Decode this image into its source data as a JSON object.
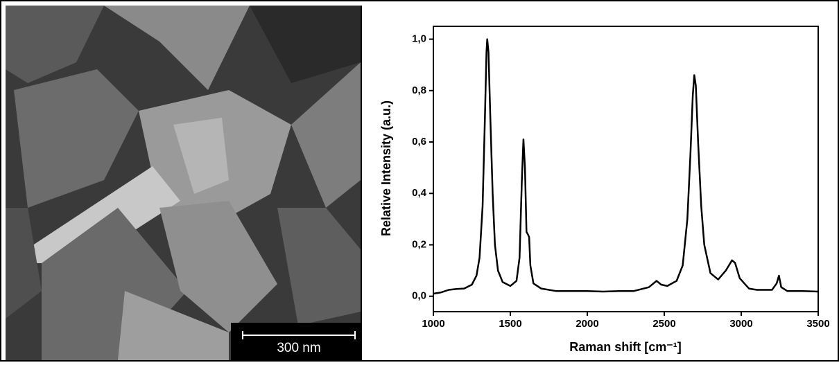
{
  "image": {
    "scale_bar": "300 nm"
  },
  "chart_data": {
    "type": "line",
    "xlabel": "Raman shift [cm⁻¹]",
    "ylabel": "Relative Intensity (a.u.)",
    "x": [
      1000,
      1050,
      1100,
      1150,
      1200,
      1250,
      1280,
      1300,
      1320,
      1335,
      1345,
      1350,
      1358,
      1370,
      1385,
      1400,
      1420,
      1450,
      1500,
      1540,
      1560,
      1575,
      1585,
      1595,
      1605,
      1615,
      1622,
      1630,
      1650,
      1700,
      1800,
      1900,
      2000,
      2100,
      2200,
      2300,
      2400,
      2450,
      2480,
      2520,
      2580,
      2620,
      2650,
      2670,
      2685,
      2695,
      2705,
      2720,
      2740,
      2760,
      2800,
      2850,
      2900,
      2940,
      2960,
      2990,
      3050,
      3100,
      3200,
      3230,
      3245,
      3260,
      3300,
      3400,
      3500
    ],
    "y": [
      0.01,
      0.015,
      0.025,
      0.028,
      0.03,
      0.045,
      0.08,
      0.15,
      0.35,
      0.7,
      0.95,
      1.0,
      0.95,
      0.7,
      0.4,
      0.2,
      0.1,
      0.055,
      0.04,
      0.06,
      0.15,
      0.45,
      0.61,
      0.5,
      0.25,
      0.24,
      0.23,
      0.12,
      0.05,
      0.03,
      0.02,
      0.02,
      0.02,
      0.018,
      0.02,
      0.02,
      0.035,
      0.06,
      0.045,
      0.04,
      0.06,
      0.12,
      0.3,
      0.55,
      0.78,
      0.86,
      0.82,
      0.6,
      0.35,
      0.2,
      0.09,
      0.065,
      0.1,
      0.14,
      0.13,
      0.07,
      0.03,
      0.025,
      0.025,
      0.05,
      0.08,
      0.035,
      0.02,
      0.02,
      0.018
    ],
    "color": "#000000",
    "xlim": [
      1000,
      3500
    ],
    "xticks": [
      1000,
      1500,
      2000,
      2500,
      3000,
      3500
    ],
    "ylim": [
      -0.06,
      1.05
    ],
    "yticks": [
      {
        "value": 0,
        "label": "0,0"
      },
      {
        "value": 0.2,
        "label": "0,2"
      },
      {
        "value": 0.4,
        "label": "0,4"
      },
      {
        "value": 0.6,
        "label": "0,6"
      },
      {
        "value": 0.8,
        "label": "0,8"
      },
      {
        "value": 1.0,
        "label": "1,0"
      }
    ]
  }
}
